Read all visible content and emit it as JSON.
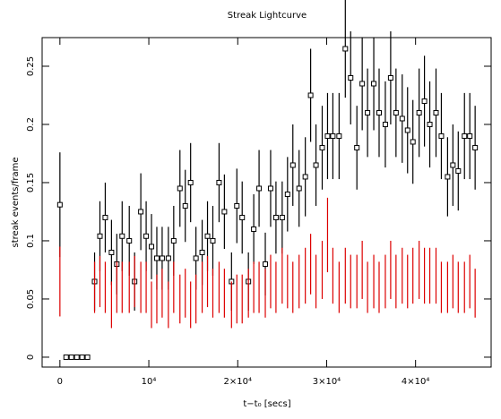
{
  "chart_data": {
    "type": "errorbar",
    "title": "Streak Lightcurve",
    "x_label": "t−t₀ [secs]",
    "y_label": "streak events/frame",
    "xlim": [
      -2000,
      48500
    ],
    "ylim": [
      -0.0085,
      0.2746
    ],
    "xticks": [
      0,
      {
        "value": 10000,
        "label": "10⁴"
      },
      {
        "value": 20000,
        "label": "2×10⁴"
      },
      {
        "value": 30000,
        "label": "3×10⁴"
      },
      {
        "value": 40000,
        "label": "4×10⁴"
      }
    ],
    "yticks": [
      0,
      0.05,
      0.1,
      0.15,
      0.2,
      0.25
    ],
    "series": [
      {
        "color": "#000000",
        "marker": "square",
        "x": [
          0,
          700,
          1300,
          1900,
          2500,
          3100,
          3900,
          4500,
          5100,
          5800,
          6400,
          7000,
          7800,
          8400,
          9100,
          9700,
          10300,
          10900,
          11500,
          12200,
          12800,
          13500,
          14100,
          14700,
          15300,
          16000,
          16600,
          17200,
          17900,
          18500,
          19300,
          19900,
          20500,
          21200,
          21800,
          22400,
          23100,
          23700,
          24300,
          25000,
          25600,
          26200,
          26900,
          27600,
          28200,
          28800,
          29500,
          30100,
          30700,
          31400,
          32100,
          32700,
          33400,
          34000,
          34600,
          35300,
          35900,
          36600,
          37200,
          37800,
          38500,
          39100,
          39700,
          40400,
          41000,
          41600,
          42300,
          42900,
          43600,
          44200,
          44800,
          45500,
          46100,
          46700
        ],
        "values": [
          0.131,
          0,
          0,
          0,
          0,
          0,
          0.065,
          0.104,
          0.12,
          0.09,
          0.08,
          0.104,
          0.1,
          0.065,
          0.125,
          0.104,
          0.095,
          0.085,
          0.085,
          0.085,
          0.1,
          0.145,
          0.13,
          0.15,
          0.085,
          0.09,
          0.104,
          0.1,
          0.15,
          0.125,
          0.065,
          0.13,
          0.12,
          0.065,
          0.11,
          0.145,
          0.08,
          0.145,
          0.12,
          0.12,
          0.14,
          0.165,
          0.145,
          0.155,
          0.225,
          0.165,
          0.18,
          0.19,
          0.19,
          0.19,
          0.265,
          0.24,
          0.18,
          0.235,
          0.21,
          0.235,
          0.21,
          0.2,
          0.24,
          0.21,
          0.205,
          0.195,
          0.185,
          0.21,
          0.22,
          0.2,
          0.21,
          0.19,
          0.155,
          0.165,
          0.16,
          0.19,
          0.19,
          0.18
        ],
        "errors": [
          0.045,
          0,
          0,
          0,
          0,
          0,
          0.025,
          0.03,
          0.03,
          0.028,
          0.026,
          0.03,
          0.03,
          0.025,
          0.033,
          0.03,
          0.028,
          0.027,
          0.027,
          0.027,
          0.03,
          0.033,
          0.031,
          0.034,
          0.027,
          0.028,
          0.03,
          0.03,
          0.034,
          0.032,
          0.025,
          0.032,
          0.031,
          0.025,
          0.03,
          0.033,
          0.027,
          0.033,
          0.031,
          0.031,
          0.032,
          0.035,
          0.033,
          0.034,
          0.04,
          0.035,
          0.036,
          0.037,
          0.037,
          0.037,
          0.042,
          0.04,
          0.036,
          0.04,
          0.038,
          0.04,
          0.038,
          0.037,
          0.04,
          0.038,
          0.038,
          0.037,
          0.036,
          0.038,
          0.039,
          0.037,
          0.038,
          0.037,
          0.034,
          0.035,
          0.034,
          0.037,
          0.037,
          0.036
        ]
      },
      {
        "color": "#dd0000",
        "marker": "none",
        "x": [
          0,
          3900,
          4500,
          5100,
          5800,
          6400,
          7000,
          7800,
          8400,
          9100,
          9700,
          10300,
          10900,
          11500,
          12200,
          12800,
          13500,
          14100,
          14700,
          15300,
          16000,
          16600,
          17200,
          17900,
          18500,
          19300,
          19900,
          20500,
          21200,
          21800,
          22400,
          23100,
          23700,
          24300,
          25000,
          25600,
          26200,
          26900,
          27600,
          28200,
          28800,
          29500,
          30100,
          30700,
          31400,
          32100,
          32700,
          33400,
          34000,
          34600,
          35300,
          35900,
          36600,
          37200,
          37800,
          38500,
          39100,
          39700,
          40400,
          41000,
          41600,
          42300,
          42900,
          43600,
          44200,
          44800,
          45500,
          46100,
          46700
        ],
        "values": [
          0.065,
          0.06,
          0.065,
          0.06,
          0.045,
          0.06,
          0.06,
          0.06,
          0.065,
          0.06,
          0.06,
          0.045,
          0.05,
          0.055,
          0.045,
          0.06,
          0.05,
          0.055,
          0.045,
          0.05,
          0.06,
          0.065,
          0.055,
          0.06,
          0.055,
          0.045,
          0.05,
          0.05,
          0.055,
          0.06,
          0.06,
          0.055,
          0.065,
          0.06,
          0.07,
          0.065,
          0.06,
          0.065,
          0.07,
          0.08,
          0.065,
          0.075,
          0.105,
          0.07,
          0.06,
          0.07,
          0.065,
          0.065,
          0.075,
          0.06,
          0.065,
          0.06,
          0.065,
          0.075,
          0.065,
          0.07,
          0.065,
          0.07,
          0.075,
          0.07,
          0.07,
          0.07,
          0.06,
          0.06,
          0.065,
          0.06,
          0.06,
          0.065,
          0.055
        ],
        "errors": [
          0.03,
          0.022,
          0.022,
          0.022,
          0.02,
          0.022,
          0.022,
          0.022,
          0.022,
          0.022,
          0.022,
          0.02,
          0.021,
          0.021,
          0.02,
          0.022,
          0.021,
          0.021,
          0.02,
          0.021,
          0.022,
          0.022,
          0.021,
          0.022,
          0.021,
          0.02,
          0.021,
          0.021,
          0.021,
          0.022,
          0.022,
          0.021,
          0.023,
          0.022,
          0.024,
          0.023,
          0.022,
          0.023,
          0.024,
          0.026,
          0.023,
          0.025,
          0.032,
          0.024,
          0.022,
          0.024,
          0.023,
          0.023,
          0.025,
          0.022,
          0.023,
          0.022,
          0.023,
          0.025,
          0.023,
          0.024,
          0.023,
          0.024,
          0.025,
          0.024,
          0.024,
          0.024,
          0.022,
          0.022,
          0.023,
          0.022,
          0.022,
          0.023,
          0.021
        ]
      }
    ]
  }
}
